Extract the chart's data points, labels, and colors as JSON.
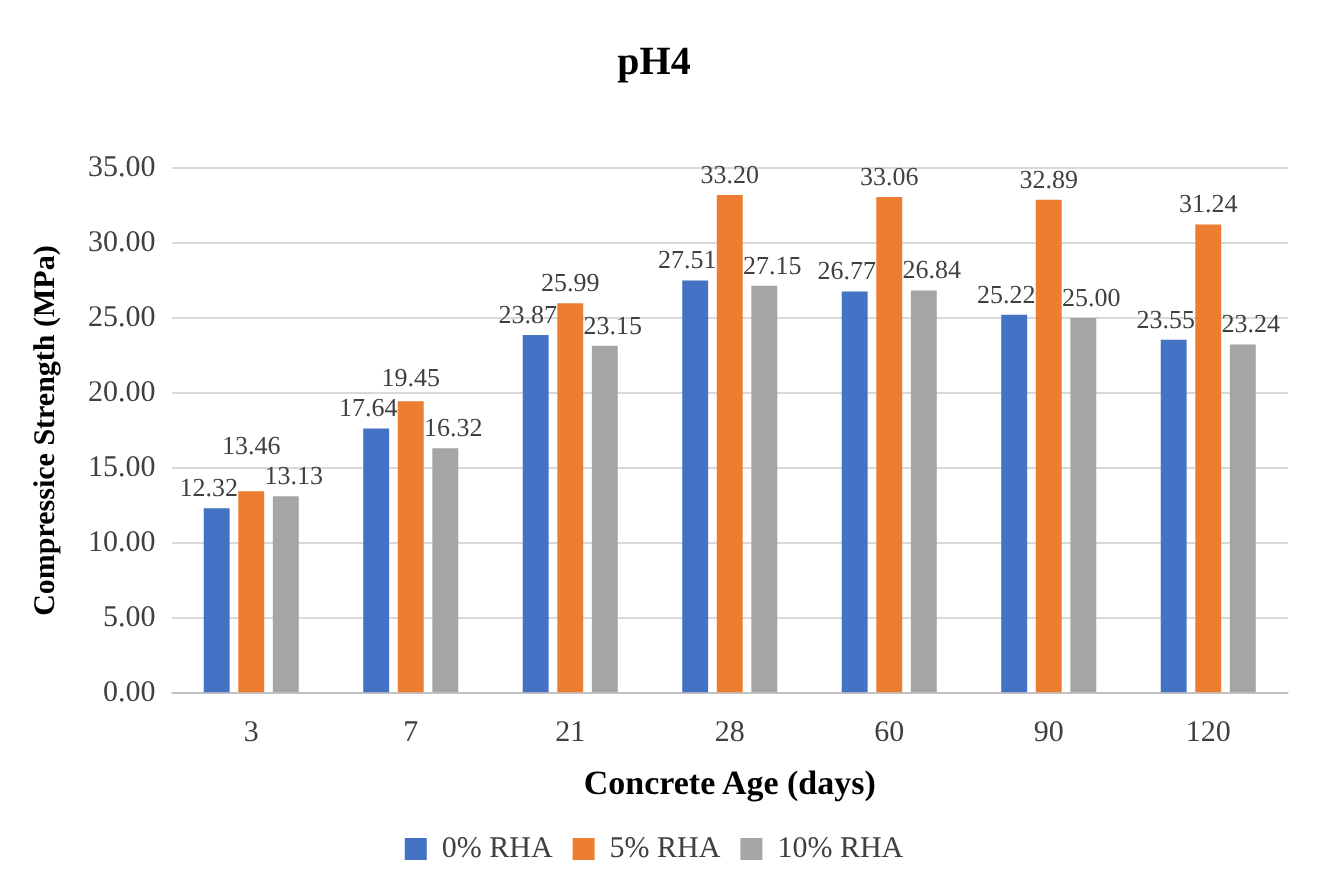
{
  "chart_data": {
    "type": "bar",
    "title": "pH4",
    "xlabel": "Concrete Age (days)",
    "ylabel": "Compressice Strength (MPa)",
    "categories": [
      "3",
      "7",
      "21",
      "28",
      "60",
      "90",
      "120"
    ],
    "series": [
      {
        "name": "0% RHA",
        "color": "#4472c4",
        "values": [
          12.32,
          17.64,
          23.87,
          27.51,
          26.77,
          25.22,
          23.55
        ],
        "value_labels": [
          "12.32",
          "17.64",
          "23.87",
          "27.51",
          "26.77",
          "25.22",
          "23.55"
        ]
      },
      {
        "name": "5% RHA",
        "color": "#ed7d31",
        "values": [
          13.46,
          19.45,
          25.99,
          33.2,
          33.06,
          32.89,
          31.24
        ],
        "value_labels": [
          "13.46",
          "19.45",
          "25.99",
          "33.20",
          "33.06",
          "32.89",
          "31.24"
        ]
      },
      {
        "name": "10% RHA",
        "color": "#a5a5a5",
        "values": [
          13.13,
          16.32,
          23.15,
          27.15,
          26.84,
          25.0,
          23.24
        ],
        "value_labels": [
          "13.13",
          "16.32",
          "23.15",
          "27.15",
          "26.84",
          "25.00",
          "23.24"
        ]
      }
    ],
    "ylim": [
      0,
      35
    ],
    "yticks": [
      {
        "value": 0,
        "label": "0.00"
      },
      {
        "value": 5,
        "label": "5.00"
      },
      {
        "value": 10,
        "label": "10.00"
      },
      {
        "value": 15,
        "label": "15.00"
      },
      {
        "value": 20,
        "label": "20.00"
      },
      {
        "value": 25,
        "label": "25.00"
      },
      {
        "value": 30,
        "label": "30.00"
      },
      {
        "value": 35,
        "label": "35.00"
      }
    ],
    "grid": "y",
    "legend": "bottom"
  }
}
